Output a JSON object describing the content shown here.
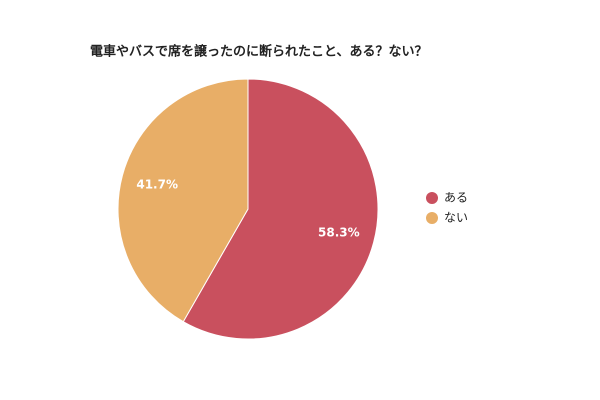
{
  "chart_data": {
    "type": "pie",
    "title": "電車やバスで席を譲ったのに断られたこと、ある？ない？",
    "categories": [
      "ある",
      "ない"
    ],
    "values": [
      58.3,
      41.7
    ],
    "value_labels": [
      "58.3%",
      "41.7%"
    ],
    "colors": [
      "#c9505e",
      "#e8ae67"
    ],
    "legend": "right"
  }
}
